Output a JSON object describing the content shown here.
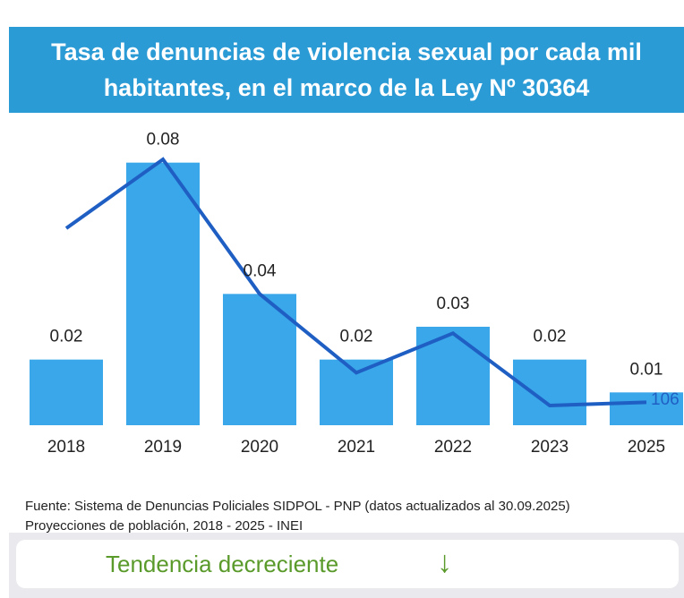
{
  "title": "Tasa de denuncias de violencia sexual por cada mil habitantes, en el marco de la Ley Nº 30364",
  "chart_data": {
    "type": "bar",
    "categories": [
      "2018",
      "2019",
      "2020",
      "2021",
      "2022",
      "2023",
      "2025"
    ],
    "series": [
      {
        "type": "bar",
        "color": "#3aa7ea",
        "values": [
          0.02,
          0.08,
          0.04,
          0.02,
          0.03,
          0.02,
          0.01
        ]
      },
      {
        "type": "line",
        "color": "#1f5fc4",
        "values": [
          0.06,
          0.081,
          0.04,
          0.016,
          0.028,
          0.006,
          0.007
        ]
      }
    ],
    "annotation": "106",
    "ylim": [
      0,
      0.09
    ]
  },
  "source": [
    "Fuente: Sistema de Denuncias Policiales SIDPOL - PNP (datos actualizados al 30.09.2025)",
    "Proyecciones de población, 2018 - 2025 - INEI"
  ],
  "footer": {
    "text": "Tendencia decreciente",
    "icon": "↓"
  }
}
